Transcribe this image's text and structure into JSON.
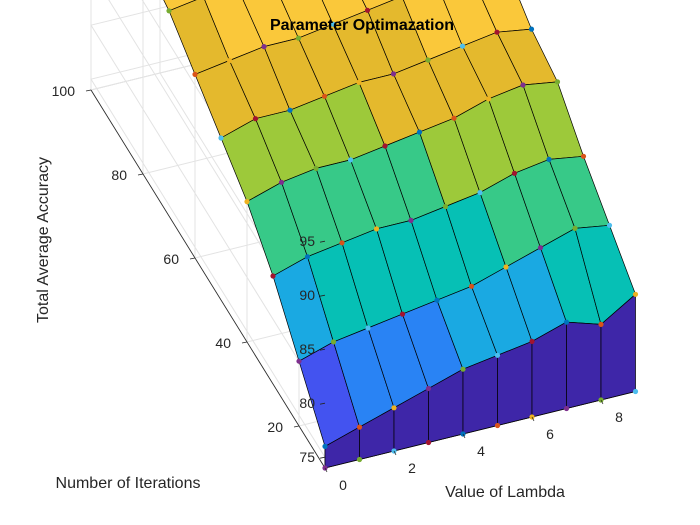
{
  "chart_data": {
    "type": "surface",
    "title": "Parameter Optimazation",
    "xlabel": "Value of Lambda",
    "ylabel": "Number of Iterations",
    "zlabel": "Total Average Accuracy",
    "xlim": [
      0,
      9
    ],
    "ylim": [
      10,
      100
    ],
    "zlim": [
      74,
      97
    ],
    "x": [
      0,
      1,
      2,
      3,
      4,
      5,
      6,
      7,
      8,
      9
    ],
    "y": [
      10,
      20,
      30,
      40,
      50,
      60,
      70,
      80,
      90,
      100
    ],
    "x_ticks": [
      "0",
      "2",
      "4",
      "6",
      "8"
    ],
    "y_ticks": [
      "20",
      "40",
      "60",
      "80",
      "100"
    ],
    "z_ticks": [
      "75",
      "80",
      "85",
      "90",
      "95"
    ],
    "grid": true,
    "z": [
      [
        76.0,
        77.0,
        78.0,
        79.0,
        80.0,
        80.5,
        81.0,
        82.0,
        81.0,
        83.0
      ],
      [
        80.0,
        81.0,
        81.5,
        82.0,
        82.5,
        83.0,
        84.0,
        85.0,
        86.0,
        85.5
      ],
      [
        84.0,
        85.0,
        85.5,
        86.0,
        86.0,
        86.5,
        87.0,
        88.0,
        88.5,
        88.0
      ],
      [
        87.0,
        88.0,
        88.5,
        88.5,
        89.0,
        89.5,
        90.0,
        91.0,
        91.5,
        91.0
      ],
      [
        89.0,
        90.0,
        90.0,
        90.5,
        91.0,
        91.0,
        91.5,
        92.0,
        92.5,
        92.0
      ],
      [
        91.0,
        91.5,
        92.0,
        92.0,
        92.5,
        93.0,
        93.5,
        94.0,
        94.0,
        94.0
      ],
      [
        93.0,
        93.5,
        93.5,
        93.5,
        94.0,
        94.0,
        94.5,
        95.0,
        95.0,
        94.5
      ],
      [
        94.0,
        94.5,
        95.0,
        94.5,
        95.0,
        95.0,
        95.5,
        96.0,
        96.0,
        95.5
      ],
      [
        95.0,
        95.0,
        95.5,
        95.0,
        95.5,
        95.5,
        96.0,
        96.5,
        96.0,
        96.0
      ],
      [
        95.0,
        95.0,
        95.5,
        95.0,
        95.5,
        95.5,
        96.0,
        96.5,
        96.5,
        96.0
      ]
    ],
    "colormap": [
      "#3e26a8",
      "#4353f0",
      "#2983f4",
      "#1aa9e2",
      "#06c0b5",
      "#37c988",
      "#9dc93a",
      "#e4b92d",
      "#fac83a",
      "#f9fb15"
    ],
    "marker_colors": [
      "#0072bd",
      "#d95319",
      "#edb120",
      "#7e2f8e",
      "#77ac30",
      "#4dbeee",
      "#a2142f"
    ]
  }
}
